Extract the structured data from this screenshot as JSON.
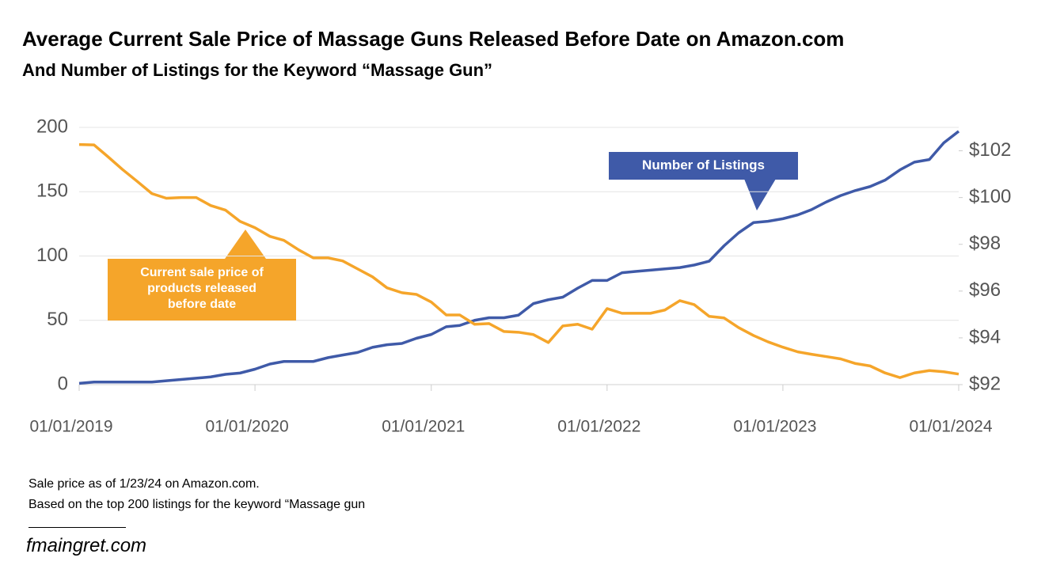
{
  "chart_data": {
    "type": "line",
    "title": "Average Current Sale Price of Massage Guns Released Before Date on Amazon.com",
    "subtitle": "And Number of Listings for the Keyword “Massage Gun”",
    "x": [
      "01/01/2019",
      "02/01/2019",
      "03/01/2019",
      "04/01/2019",
      "05/01/2019",
      "06/01/2019",
      "07/01/2019",
      "08/01/2019",
      "09/01/2019",
      "10/01/2019",
      "11/01/2019",
      "12/01/2019",
      "01/01/2020",
      "02/01/2020",
      "03/01/2020",
      "04/01/2020",
      "05/01/2020",
      "06/01/2020",
      "07/01/2020",
      "08/01/2020",
      "09/01/2020",
      "10/01/2020",
      "11/01/2020",
      "12/01/2020",
      "01/01/2021",
      "02/01/2021",
      "03/01/2021",
      "04/01/2021",
      "05/01/2021",
      "06/01/2021",
      "07/01/2021",
      "08/01/2021",
      "09/01/2021",
      "10/01/2021",
      "11/01/2021",
      "12/01/2021",
      "01/01/2022",
      "02/01/2022",
      "03/01/2022",
      "04/01/2022",
      "05/01/2022",
      "06/01/2022",
      "07/01/2022",
      "08/01/2022",
      "09/01/2022",
      "10/01/2022",
      "11/01/2022",
      "12/01/2022",
      "01/01/2023",
      "02/01/2023",
      "03/01/2023",
      "04/01/2023",
      "05/01/2023",
      "06/01/2023",
      "07/01/2023",
      "08/01/2023",
      "09/01/2023",
      "10/01/2023",
      "11/01/2023",
      "12/01/2023",
      "01/01/2024"
    ],
    "series": [
      {
        "name": "Number of Listings",
        "color": "#3f5aa8",
        "axis": "y",
        "values": [
          1,
          2,
          2,
          2,
          2,
          2,
          3,
          4,
          5,
          6,
          8,
          9,
          12,
          16,
          18,
          18,
          18,
          21,
          23,
          25,
          29,
          31,
          32,
          36,
          39,
          45,
          46,
          50,
          52,
          52,
          54,
          63,
          66,
          68,
          75,
          81,
          81,
          87,
          88,
          89,
          90,
          91,
          93,
          96,
          108,
          118,
          126,
          127,
          129,
          132,
          136,
          142,
          147,
          151,
          154,
          159,
          167,
          173,
          175,
          188,
          197
        ]
      },
      {
        "name": "Current sale price of products released before date",
        "color": "#f5a52a",
        "axis": "y2",
        "values": [
          102.27,
          102.25,
          101.76,
          101.2,
          100.7,
          100.17,
          99.97,
          100.0,
          100.0,
          99.66,
          99.46,
          98.98,
          98.71,
          98.34,
          98.17,
          97.76,
          97.42,
          97.42,
          97.29,
          96.95,
          96.61,
          96.14,
          95.93,
          95.86,
          95.53,
          94.98,
          94.98,
          94.58,
          94.61,
          94.27,
          94.24,
          94.14,
          93.8,
          94.51,
          94.58,
          94.37,
          95.25,
          95.05,
          95.05,
          95.05,
          95.19,
          95.59,
          95.42,
          94.92,
          94.85,
          94.44,
          94.1,
          93.83,
          93.6,
          93.4,
          93.3,
          93.2,
          93.1,
          92.9,
          92.8,
          92.5,
          92.3,
          92.5,
          92.6,
          92.55,
          92.45
        ]
      }
    ],
    "xlim": [
      "01/01/2019",
      "01/01/2024"
    ],
    "xticks": [
      "01/01/2019",
      "01/01/2020",
      "01/01/2021",
      "01/01/2022",
      "01/01/2023",
      "01/01/2024"
    ],
    "ylim": [
      0,
      200
    ],
    "yticks": [
      0,
      50,
      100,
      150,
      200
    ],
    "y2lim": [
      92,
      103
    ],
    "y2ticks": [
      {
        "value": 92,
        "label": "$92"
      },
      {
        "value": 94,
        "label": "$94"
      },
      {
        "value": 96,
        "label": "$96"
      },
      {
        "value": 98,
        "label": "$98"
      },
      {
        "value": 100,
        "label": "$100"
      },
      {
        "value": 102,
        "label": "$102"
      }
    ],
    "grid": true,
    "notes": [
      "Sale price as of 1/23/24 on Amazon.com.",
      "Based on the top 200 listings for the keyword “Massage gun"
    ],
    "source": "fmaingret.com"
  }
}
